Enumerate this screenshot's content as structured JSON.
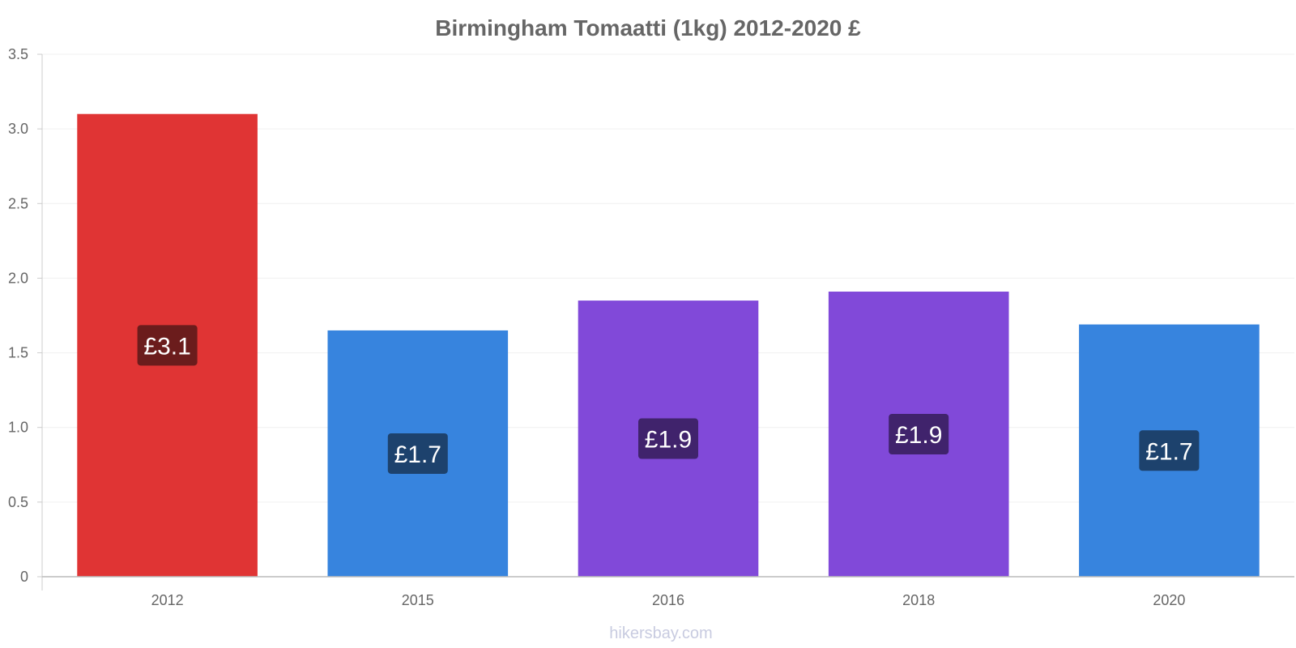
{
  "chart_data": {
    "type": "bar",
    "title": "Birmingham Tomaatti (1kg) 2012-2020 £",
    "categories": [
      "2012",
      "2015",
      "2016",
      "2018",
      "2020"
    ],
    "values": [
      3.1,
      1.65,
      1.85,
      1.91,
      1.69
    ],
    "data_labels": [
      "£3.1",
      "£1.7",
      "£1.9",
      "£1.9",
      "£1.7"
    ],
    "bar_colors": [
      "#e03434",
      "#3784de",
      "#8149d9",
      "#8149d9",
      "#3784de"
    ],
    "label_bg_colors": [
      "#6b1c1c",
      "#1d426d",
      "#40236c",
      "#40236c",
      "#1d426d"
    ],
    "ylim": [
      0,
      3.5
    ],
    "yticks": [
      "0",
      "0.5",
      "1.0",
      "1.5",
      "2.0",
      "2.5",
      "3.0",
      "3.5"
    ],
    "grid": true,
    "xlabel": "",
    "ylabel": ""
  },
  "watermark": "hikersbay.com"
}
